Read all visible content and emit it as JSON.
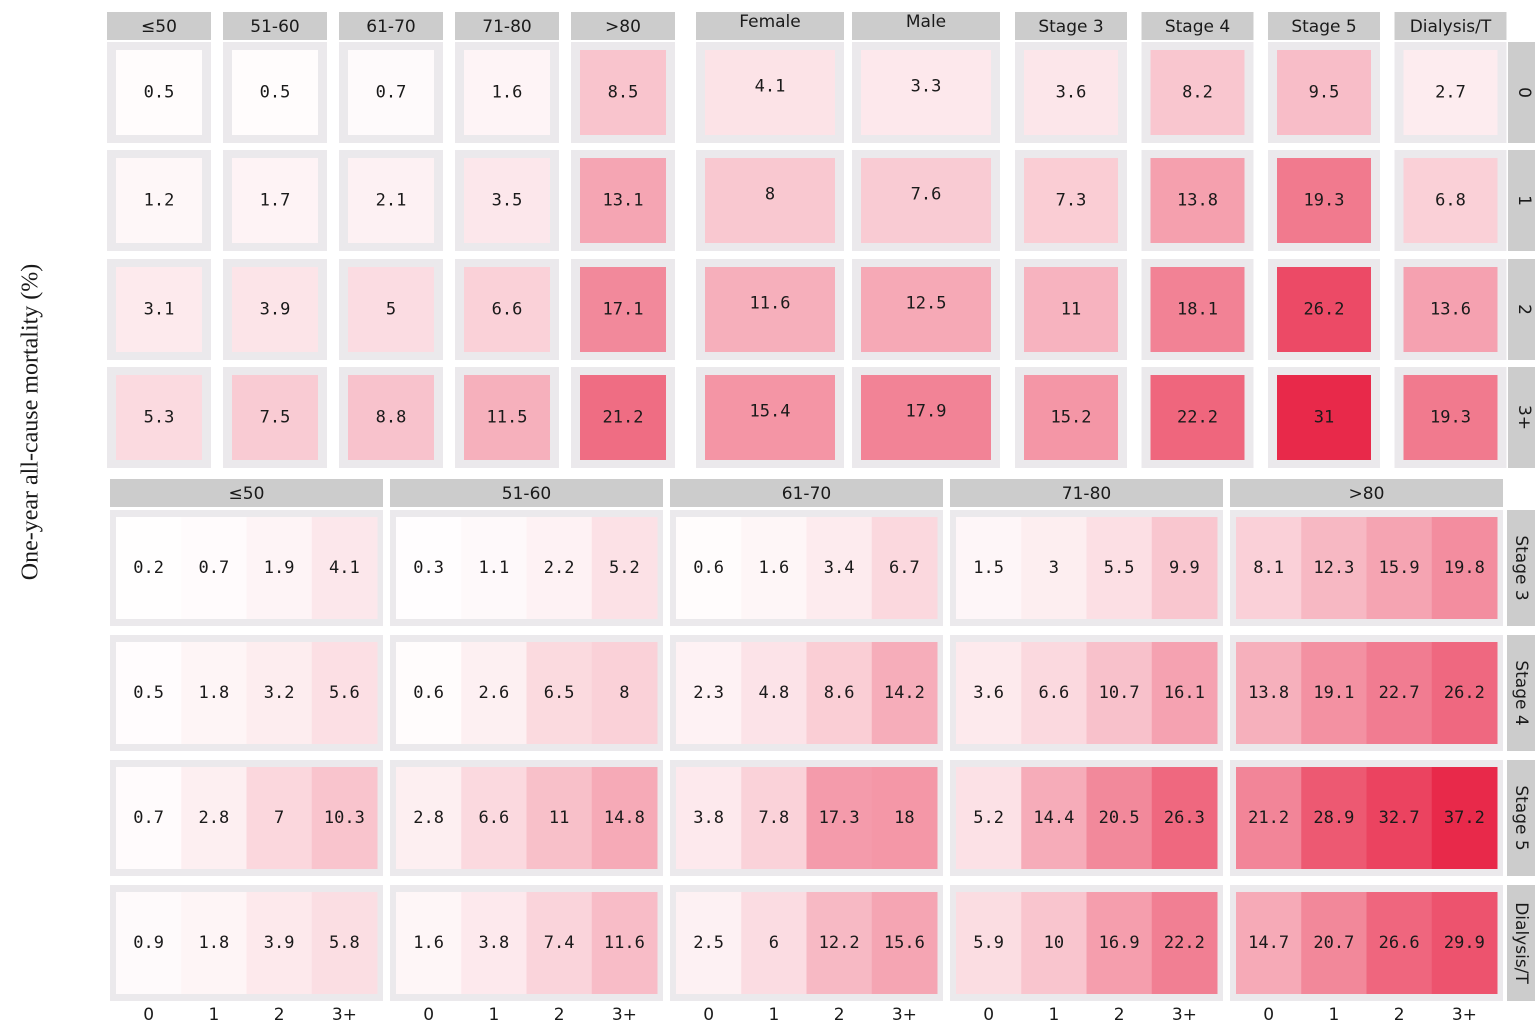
{
  "chart_data": {
    "type": "facet_heatmap",
    "ylabel": "One-year all-cause mortality (%)",
    "color_low": "#ffffff",
    "color_high": "#e8294a",
    "top": {
      "row_labels": [
        "0",
        "1",
        "2",
        "3+"
      ],
      "panels": [
        {
          "columns": [
            "≤50",
            "51-60",
            "61-70",
            "71-80",
            ">80"
          ],
          "values": [
            [
              0.5,
              0.5,
              0.7,
              1.6,
              8.5
            ],
            [
              1.2,
              1.7,
              2.1,
              3.5,
              13.1
            ],
            [
              3.1,
              3.9,
              5,
              6.6,
              17.1
            ],
            [
              5.3,
              7.5,
              8.8,
              11.5,
              21.2
            ]
          ]
        },
        {
          "columns": [
            "Female",
            "Male"
          ],
          "values": [
            [
              4.1,
              3.3
            ],
            [
              8,
              7.6
            ],
            [
              11.6,
              12.5
            ],
            [
              15.4,
              17.9
            ]
          ]
        },
        {
          "columns": [
            "Stage 3",
            "Stage 4",
            "Stage 5",
            "Dialysis/T"
          ],
          "values": [
            [
              3.6,
              8.2,
              9.5,
              2.7
            ],
            [
              7.3,
              13.8,
              19.3,
              6.8
            ],
            [
              11,
              18.1,
              26.2,
              13.6
            ],
            [
              15.2,
              22.2,
              31,
              19.3
            ]
          ]
        }
      ]
    },
    "bottom": {
      "col_panels": [
        "≤50",
        "51-60",
        "61-70",
        "71-80",
        ">80"
      ],
      "row_panels": [
        "Stage 3",
        "Stage 4",
        "Stage 5",
        "Dialysis/T"
      ],
      "categories": [
        "0",
        "1",
        "2",
        "3+"
      ],
      "values": [
        [
          [
            0.2,
            0.7,
            1.9,
            4.1
          ],
          [
            0.3,
            1.1,
            2.2,
            5.2
          ],
          [
            0.6,
            1.6,
            3.4,
            6.7
          ],
          [
            1.5,
            3,
            5.5,
            9.9
          ],
          [
            8.1,
            12.3,
            15.9,
            19.8
          ]
        ],
        [
          [
            0.5,
            1.8,
            3.2,
            5.6
          ],
          [
            0.6,
            2.6,
            6.5,
            8
          ],
          [
            2.3,
            4.8,
            8.6,
            14.2
          ],
          [
            3.6,
            6.6,
            10.7,
            16.1
          ],
          [
            13.8,
            19.1,
            22.7,
            26.2
          ]
        ],
        [
          [
            0.7,
            2.8,
            7,
            10.3
          ],
          [
            2.8,
            6.6,
            11,
            14.8
          ],
          [
            3.8,
            7.8,
            17.3,
            18
          ],
          [
            5.2,
            14.4,
            20.5,
            26.3
          ],
          [
            21.2,
            28.9,
            32.7,
            37.2
          ]
        ],
        [
          [
            0.9,
            1.8,
            3.9,
            5.8
          ],
          [
            1.6,
            3.8,
            7.4,
            11.6
          ],
          [
            2.5,
            6,
            12.2,
            15.6
          ],
          [
            5.9,
            10,
            16.9,
            22.2
          ],
          [
            14.7,
            20.7,
            26.6,
            29.9
          ]
        ]
      ]
    }
  }
}
